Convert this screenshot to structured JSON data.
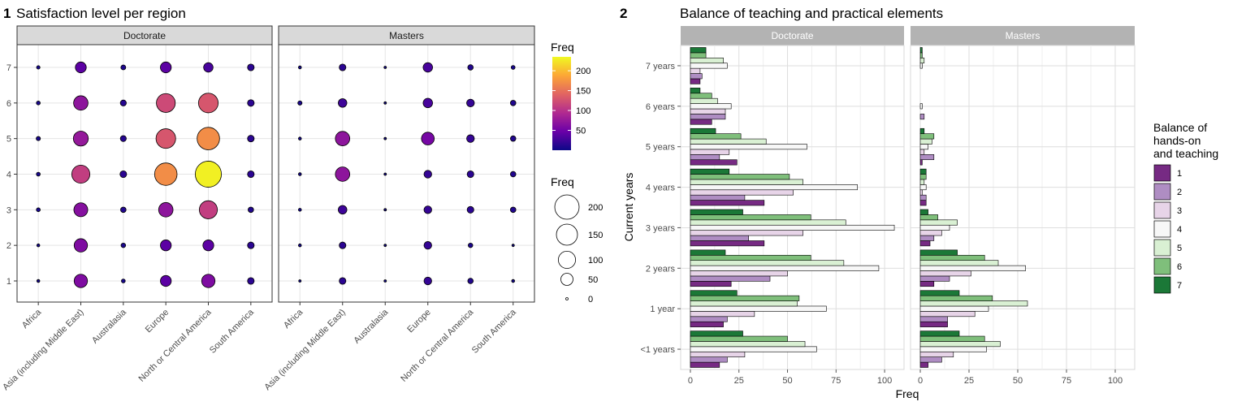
{
  "chart_data": [
    {
      "type": "scatter",
      "number": "1",
      "title": "Satisfaction level per region",
      "facets": [
        "Doctorate",
        "Masters"
      ],
      "x_categories": [
        "Africa",
        "Asia (including Middle East)",
        "Australasia",
        "Europe",
        "North or Central America",
        "South America"
      ],
      "y_ticks": [
        "1",
        "2",
        "3",
        "4",
        "5",
        "6",
        "7"
      ],
      "data": {
        "Doctorate": {
          "Africa": [
            3,
            3,
            5,
            5,
            6,
            5,
            4
          ],
          "Asia (including Middle East)": [
            60,
            60,
            65,
            110,
            75,
            70,
            40
          ],
          "Australasia": [
            5,
            7,
            10,
            15,
            12,
            12,
            8
          ],
          "Europe": [
            40,
            40,
            70,
            170,
            130,
            120,
            40
          ],
          "North or Central America": [
            60,
            40,
            110,
            230,
            170,
            130,
            30
          ],
          "South America": [
            15,
            15,
            10,
            15,
            15,
            15,
            15
          ]
        },
        "Masters": {
          "Africa": [
            2,
            3,
            3,
            3,
            3,
            6,
            3
          ],
          "Asia (including Middle East)": [
            15,
            15,
            25,
            70,
            70,
            25,
            15
          ],
          "Australasia": [
            1,
            2,
            2,
            2,
            2,
            1,
            2
          ],
          "Europe": [
            20,
            20,
            20,
            20,
            55,
            30,
            30
          ],
          "North or Central America": [
            10,
            7,
            15,
            15,
            20,
            20,
            10
          ],
          "South America": [
            3,
            2,
            10,
            10,
            10,
            10,
            5
          ]
        }
      },
      "color_legend": {
        "title": "Freq",
        "ticks": [
          "50",
          "100",
          "150",
          "200"
        ],
        "tick_values": [
          50,
          100,
          150,
          200
        ],
        "range": [
          0,
          235
        ]
      },
      "size_legend": {
        "title": "Freq",
        "labels": [
          "200",
          "150",
          "100",
          "50",
          "0"
        ],
        "values": [
          200,
          150,
          100,
          50,
          0
        ]
      }
    },
    {
      "type": "bar",
      "number": "2",
      "title": "Balance of teaching and practical elements",
      "facets": [
        "Doctorate",
        "Masters"
      ],
      "categories": [
        "<1 years",
        "1 year",
        "2 years",
        "3 years",
        "4 years",
        "5 years",
        "6 years",
        "7 years"
      ],
      "ylabel": "Current years",
      "xlabel": "Freq",
      "x_ticks": [
        "0",
        "25",
        "50",
        "75",
        "100"
      ],
      "xlim": [
        -5,
        110
      ],
      "legend": {
        "title": [
          "Balance of",
          "hands-on",
          "and teaching"
        ],
        "levels": [
          "1",
          "2",
          "3",
          "4",
          "5",
          "6",
          "7"
        ]
      },
      "colors": [
        "#762a83",
        "#af8dc3",
        "#e7d4e8",
        "#f7f7f7",
        "#d9f0d3",
        "#7fbf7b",
        "#1b7837"
      ],
      "series": {
        "Doctorate": [
          [
            15,
            19,
            28,
            65,
            59,
            50,
            27
          ],
          [
            17,
            19,
            33,
            70,
            55,
            56,
            24
          ],
          [
            21,
            41,
            50,
            97,
            79,
            62,
            18
          ],
          [
            38,
            30,
            58,
            105,
            80,
            62,
            27
          ],
          [
            38,
            28,
            53,
            86,
            58,
            51,
            20
          ],
          [
            24,
            15,
            20,
            60,
            39,
            26,
            13
          ],
          [
            11,
            18,
            18,
            21,
            14,
            11,
            5
          ],
          [
            5,
            6,
            5,
            19,
            17,
            8,
            8
          ]
        ],
        "Masters": [
          [
            4,
            11,
            17,
            34,
            41,
            33,
            20
          ],
          [
            14,
            14,
            28,
            35,
            55,
            37,
            20
          ],
          [
            7,
            15,
            26,
            54,
            40,
            33,
            19
          ],
          [
            5,
            7,
            11,
            15,
            19,
            9,
            4
          ],
          [
            3,
            3,
            1,
            3,
            2,
            3,
            3
          ],
          [
            1,
            7,
            2,
            4,
            6,
            7,
            2
          ],
          [
            0,
            2,
            0,
            1,
            0,
            0,
            0
          ],
          [
            0,
            0,
            0,
            1,
            2,
            1,
            1
          ]
        ]
      }
    }
  ]
}
